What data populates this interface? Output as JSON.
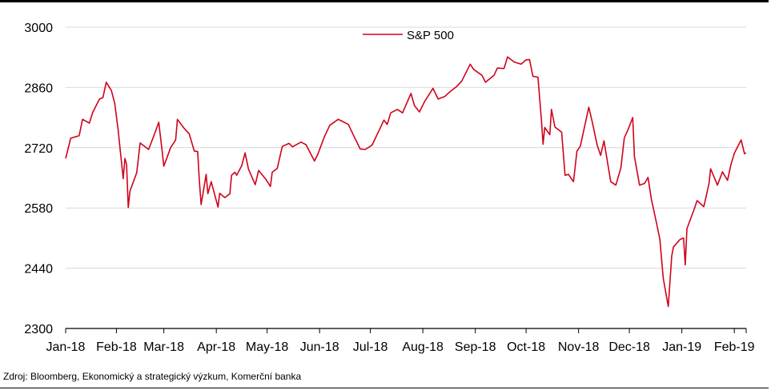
{
  "chart_data": {
    "type": "line",
    "title": "",
    "xlabel": "",
    "ylabel": "",
    "ylim": [
      2300,
      3000
    ],
    "yticks": [
      2300,
      2440,
      2580,
      2720,
      2860,
      3000
    ],
    "grid": "horizontal",
    "legend_position": "top-center",
    "x_tick_labels": [
      "Jan-18",
      "Feb-18",
      "Mar-18",
      "Apr-18",
      "May-18",
      "Jun-18",
      "Jul-18",
      "Aug-18",
      "Sep-18",
      "Oct-18",
      "Nov-18",
      "Dec-18",
      "Jan-19",
      "Feb-19"
    ],
    "series": [
      {
        "name": "S&P 500",
        "color": "#d0021b",
        "points": [
          [
            "2018-01-02",
            2695
          ],
          [
            "2018-01-05",
            2742
          ],
          [
            "2018-01-10",
            2748
          ],
          [
            "2018-01-12",
            2786
          ],
          [
            "2018-01-16",
            2777
          ],
          [
            "2018-01-18",
            2802
          ],
          [
            "2018-01-22",
            2833
          ],
          [
            "2018-01-24",
            2836
          ],
          [
            "2018-01-26",
            2872
          ],
          [
            "2018-01-29",
            2853
          ],
          [
            "2018-01-31",
            2823
          ],
          [
            "2018-02-02",
            2762
          ],
          [
            "2018-02-05",
            2648
          ],
          [
            "2018-02-06",
            2695
          ],
          [
            "2018-02-07",
            2681
          ],
          [
            "2018-02-08",
            2581
          ],
          [
            "2018-02-09",
            2619
          ],
          [
            "2018-02-13",
            2662
          ],
          [
            "2018-02-15",
            2731
          ],
          [
            "2018-02-20",
            2716
          ],
          [
            "2018-02-23",
            2747
          ],
          [
            "2018-02-26",
            2779
          ],
          [
            "2018-02-28",
            2713
          ],
          [
            "2018-03-01",
            2677
          ],
          [
            "2018-03-05",
            2720
          ],
          [
            "2018-03-08",
            2738
          ],
          [
            "2018-03-09",
            2786
          ],
          [
            "2018-03-13",
            2765
          ],
          [
            "2018-03-16",
            2752
          ],
          [
            "2018-03-19",
            2712
          ],
          [
            "2018-03-21",
            2711
          ],
          [
            "2018-03-22",
            2643
          ],
          [
            "2018-03-23",
            2588
          ],
          [
            "2018-03-26",
            2658
          ],
          [
            "2018-03-27",
            2613
          ],
          [
            "2018-03-29",
            2641
          ],
          [
            "2018-04-02",
            2582
          ],
          [
            "2018-04-03",
            2614
          ],
          [
            "2018-04-06",
            2604
          ],
          [
            "2018-04-09",
            2613
          ],
          [
            "2018-04-10",
            2656
          ],
          [
            "2018-04-12",
            2663
          ],
          [
            "2018-04-13",
            2656
          ],
          [
            "2018-04-16",
            2678
          ],
          [
            "2018-04-18",
            2708
          ],
          [
            "2018-04-20",
            2670
          ],
          [
            "2018-04-24",
            2634
          ],
          [
            "2018-04-26",
            2667
          ],
          [
            "2018-04-30",
            2648
          ],
          [
            "2018-05-03",
            2630
          ],
          [
            "2018-05-04",
            2663
          ],
          [
            "2018-05-07",
            2672
          ],
          [
            "2018-05-10",
            2723
          ],
          [
            "2018-05-14",
            2730
          ],
          [
            "2018-05-16",
            2722
          ],
          [
            "2018-05-21",
            2733
          ],
          [
            "2018-05-24",
            2727
          ],
          [
            "2018-05-29",
            2689
          ],
          [
            "2018-05-31",
            2705
          ],
          [
            "2018-06-04",
            2747
          ],
          [
            "2018-06-07",
            2772
          ],
          [
            "2018-06-12",
            2786
          ],
          [
            "2018-06-14",
            2782
          ],
          [
            "2018-06-18",
            2774
          ],
          [
            "2018-06-21",
            2749
          ],
          [
            "2018-06-25",
            2717
          ],
          [
            "2018-06-28",
            2716
          ],
          [
            "2018-07-02",
            2726
          ],
          [
            "2018-07-06",
            2759
          ],
          [
            "2018-07-09",
            2784
          ],
          [
            "2018-07-11",
            2774
          ],
          [
            "2018-07-13",
            2801
          ],
          [
            "2018-07-17",
            2809
          ],
          [
            "2018-07-20",
            2801
          ],
          [
            "2018-07-25",
            2846
          ],
          [
            "2018-07-27",
            2818
          ],
          [
            "2018-07-30",
            2803
          ],
          [
            "2018-08-02",
            2827
          ],
          [
            "2018-08-07",
            2858
          ],
          [
            "2018-08-10",
            2833
          ],
          [
            "2018-08-14",
            2839
          ],
          [
            "2018-08-17",
            2850
          ],
          [
            "2018-08-21",
            2862
          ],
          [
            "2018-08-24",
            2875
          ],
          [
            "2018-08-29",
            2914
          ],
          [
            "2018-08-31",
            2902
          ],
          [
            "2018-09-05",
            2888
          ],
          [
            "2018-09-07",
            2872
          ],
          [
            "2018-09-12",
            2888
          ],
          [
            "2018-09-14",
            2905
          ],
          [
            "2018-09-18",
            2904
          ],
          [
            "2018-09-20",
            2931
          ],
          [
            "2018-09-24",
            2919
          ],
          [
            "2018-09-28",
            2914
          ],
          [
            "2018-10-01",
            2924
          ],
          [
            "2018-10-03",
            2925
          ],
          [
            "2018-10-05",
            2886
          ],
          [
            "2018-10-08",
            2884
          ],
          [
            "2018-10-10",
            2786
          ],
          [
            "2018-10-11",
            2728
          ],
          [
            "2018-10-12",
            2767
          ],
          [
            "2018-10-15",
            2750
          ],
          [
            "2018-10-16",
            2809
          ],
          [
            "2018-10-18",
            2768
          ],
          [
            "2018-10-22",
            2756
          ],
          [
            "2018-10-24",
            2656
          ],
          [
            "2018-10-26",
            2658
          ],
          [
            "2018-10-29",
            2641
          ],
          [
            "2018-10-31",
            2712
          ],
          [
            "2018-11-02",
            2723
          ],
          [
            "2018-11-07",
            2814
          ],
          [
            "2018-11-09",
            2781
          ],
          [
            "2018-11-12",
            2726
          ],
          [
            "2018-11-14",
            2702
          ],
          [
            "2018-11-16",
            2736
          ],
          [
            "2018-11-20",
            2641
          ],
          [
            "2018-11-23",
            2633
          ],
          [
            "2018-11-26",
            2673
          ],
          [
            "2018-11-28",
            2743
          ],
          [
            "2018-11-30",
            2760
          ],
          [
            "2018-12-03",
            2790
          ],
          [
            "2018-12-04",
            2700
          ],
          [
            "2018-12-07",
            2633
          ],
          [
            "2018-12-10",
            2637
          ],
          [
            "2018-12-12",
            2651
          ],
          [
            "2018-12-14",
            2600
          ],
          [
            "2018-12-17",
            2546
          ],
          [
            "2018-12-19",
            2507
          ],
          [
            "2018-12-21",
            2417
          ],
          [
            "2018-12-24",
            2351
          ],
          [
            "2018-12-26",
            2468
          ],
          [
            "2018-12-27",
            2489
          ],
          [
            "2018-12-31",
            2507
          ],
          [
            "2019-01-02",
            2510
          ],
          [
            "2019-01-03",
            2448
          ],
          [
            "2019-01-04",
            2532
          ],
          [
            "2019-01-08",
            2574
          ],
          [
            "2019-01-10",
            2597
          ],
          [
            "2019-01-14",
            2583
          ],
          [
            "2019-01-17",
            2636
          ],
          [
            "2019-01-18",
            2671
          ],
          [
            "2019-01-22",
            2633
          ],
          [
            "2019-01-25",
            2664
          ],
          [
            "2019-01-28",
            2644
          ],
          [
            "2019-01-30",
            2681
          ],
          [
            "2019-02-01",
            2707
          ],
          [
            "2019-02-05",
            2738
          ],
          [
            "2019-02-07",
            2706
          ],
          [
            "2019-02-08",
            2708
          ]
        ]
      }
    ],
    "source": "Zdroj: Bloomberg, Ekonomický a strategický výzkum, Komerční banka"
  }
}
